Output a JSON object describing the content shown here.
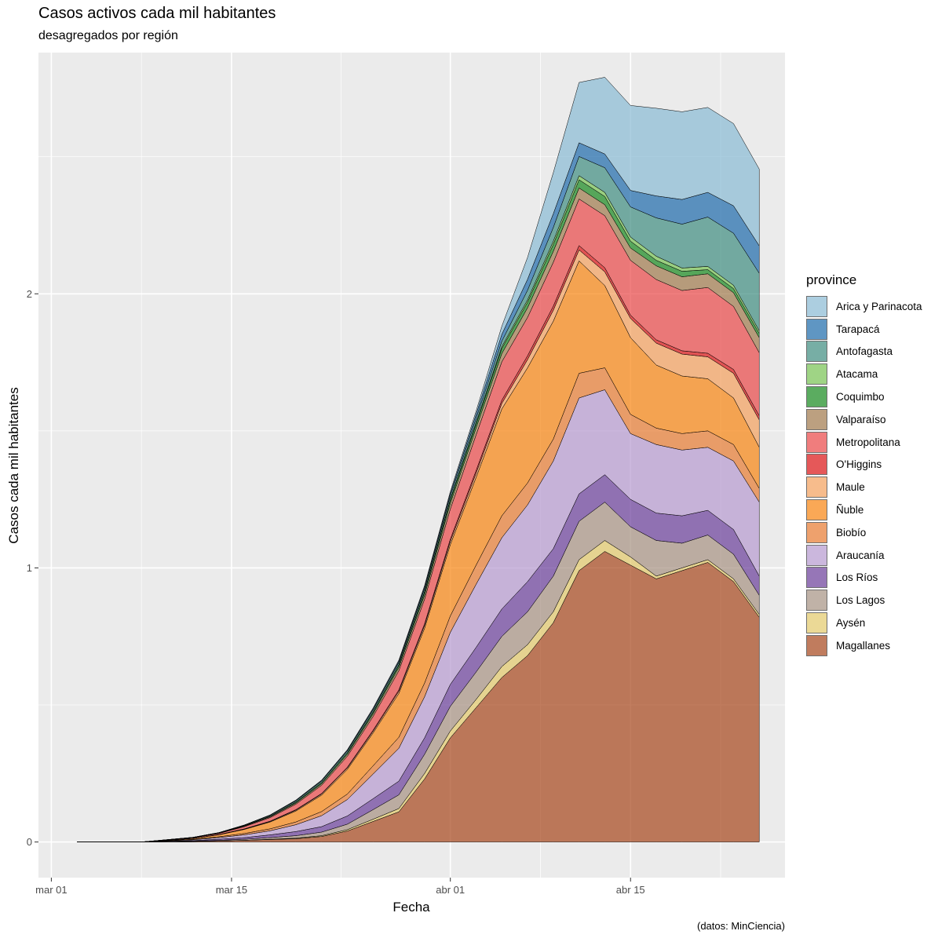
{
  "chart_data": {
    "type": "area",
    "title": "Casos activos cada mil habitantes",
    "subtitle": "desagregados por región",
    "xlabel": "Fecha",
    "ylabel": "Casos cada mil habitantes",
    "caption": "(datos: MinCiencia)",
    "legend_title": "province",
    "legend_position": "right",
    "stacked": true,
    "x_range": [
      "2020-02-29",
      "2020-04-27"
    ],
    "y_range": [
      -0.13,
      2.88
    ],
    "x_ticks": [
      {
        "date": "2020-03-01",
        "label": "mar 01"
      },
      {
        "date": "2020-03-15",
        "label": "mar 15"
      },
      {
        "date": "2020-04-01",
        "label": "abr 01"
      },
      {
        "date": "2020-04-15",
        "label": "abr 15"
      }
    ],
    "y_ticks": [
      0,
      1,
      2
    ],
    "x": [
      "2020-03-03",
      "2020-03-08",
      "2020-03-12",
      "2020-03-14",
      "2020-03-16",
      "2020-03-18",
      "2020-03-20",
      "2020-03-22",
      "2020-03-24",
      "2020-03-26",
      "2020-03-28",
      "2020-03-30",
      "2020-04-01",
      "2020-04-03",
      "2020-04-05",
      "2020-04-07",
      "2020-04-09",
      "2020-04-11",
      "2020-04-13",
      "2020-04-15",
      "2020-04-17",
      "2020-04-19",
      "2020-04-21",
      "2020-04-23",
      "2020-04-25"
    ],
    "series": [
      {
        "name": "Magallanes",
        "color": "#a6461b",
        "values": [
          0.0,
          0.0,
          0.002,
          0.004,
          0.006,
          0.009,
          0.012,
          0.02,
          0.04,
          0.075,
          0.11,
          0.23,
          0.38,
          0.49,
          0.6,
          0.68,
          0.8,
          0.99,
          1.06,
          1.01,
          0.96,
          0.99,
          1.02,
          0.95,
          0.82
        ]
      },
      {
        "name": "Aysén",
        "color": "#e3c96a",
        "values": [
          0.0,
          0.0,
          0.0,
          0.0,
          0.0,
          0.001,
          0.002,
          0.003,
          0.005,
          0.008,
          0.012,
          0.02,
          0.025,
          0.03,
          0.04,
          0.04,
          0.04,
          0.04,
          0.04,
          0.03,
          0.01,
          0.01,
          0.01,
          0.01,
          0.01
        ]
      },
      {
        "name": "Los Lagos",
        "color": "#a69282",
        "values": [
          0.0,
          0.0,
          0.001,
          0.002,
          0.004,
          0.006,
          0.009,
          0.013,
          0.02,
          0.035,
          0.05,
          0.07,
          0.09,
          0.1,
          0.11,
          0.12,
          0.13,
          0.14,
          0.14,
          0.11,
          0.13,
          0.09,
          0.09,
          0.09,
          0.07
        ]
      },
      {
        "name": "Los Ríos",
        "color": "#6a3d9a",
        "values": [
          0.0,
          0.0,
          0.002,
          0.004,
          0.006,
          0.01,
          0.015,
          0.02,
          0.03,
          0.04,
          0.05,
          0.06,
          0.08,
          0.09,
          0.1,
          0.11,
          0.1,
          0.1,
          0.1,
          0.1,
          0.1,
          0.1,
          0.09,
          0.09,
          0.07
        ]
      },
      {
        "name": "Araucanía",
        "color": "#b69ad0",
        "values": [
          0.0,
          0.0,
          0.003,
          0.006,
          0.01,
          0.015,
          0.025,
          0.04,
          0.06,
          0.09,
          0.12,
          0.15,
          0.19,
          0.23,
          0.26,
          0.28,
          0.32,
          0.35,
          0.31,
          0.24,
          0.25,
          0.24,
          0.23,
          0.25,
          0.27
        ]
      },
      {
        "name": "Biobío",
        "color": "#e77a30",
        "values": [
          0.0,
          0.0,
          0.002,
          0.003,
          0.005,
          0.007,
          0.01,
          0.015,
          0.02,
          0.03,
          0.04,
          0.05,
          0.06,
          0.07,
          0.08,
          0.08,
          0.08,
          0.09,
          0.08,
          0.07,
          0.06,
          0.06,
          0.06,
          0.06,
          0.05
        ]
      },
      {
        "name": "Ñuble",
        "color": "#f88410",
        "values": [
          0.0,
          0.0,
          0.003,
          0.007,
          0.015,
          0.025,
          0.04,
          0.06,
          0.09,
          0.12,
          0.16,
          0.2,
          0.26,
          0.32,
          0.39,
          0.42,
          0.43,
          0.41,
          0.3,
          0.28,
          0.23,
          0.21,
          0.19,
          0.17,
          0.15
        ]
      },
      {
        "name": "Maule",
        "color": "#f4a05c",
        "values": [
          0.0,
          0.0,
          0.0,
          0.001,
          0.001,
          0.002,
          0.003,
          0.004,
          0.005,
          0.006,
          0.008,
          0.01,
          0.012,
          0.015,
          0.02,
          0.03,
          0.04,
          0.04,
          0.05,
          0.07,
          0.08,
          0.08,
          0.08,
          0.09,
          0.1
        ]
      },
      {
        "name": "O'Higgins",
        "color": "#db1213",
        "values": [
          0.0,
          0.0,
          0.0,
          0.0,
          0.001,
          0.001,
          0.002,
          0.002,
          0.003,
          0.004,
          0.005,
          0.006,
          0.008,
          0.01,
          0.012,
          0.014,
          0.015,
          0.016,
          0.015,
          0.012,
          0.012,
          0.012,
          0.013,
          0.014,
          0.015
        ]
      },
      {
        "name": "Metropolitana",
        "color": "#ea4747",
        "values": [
          0.0,
          0.0,
          0.002,
          0.004,
          0.008,
          0.013,
          0.02,
          0.03,
          0.04,
          0.05,
          0.07,
          0.09,
          0.11,
          0.13,
          0.14,
          0.14,
          0.16,
          0.17,
          0.19,
          0.2,
          0.22,
          0.22,
          0.24,
          0.23,
          0.23
        ]
      },
      {
        "name": "Valparaíso",
        "color": "#a0794b",
        "values": [
          0.0,
          0.0,
          0.001,
          0.001,
          0.002,
          0.003,
          0.004,
          0.005,
          0.007,
          0.009,
          0.012,
          0.015,
          0.02,
          0.025,
          0.03,
          0.035,
          0.04,
          0.04,
          0.04,
          0.045,
          0.05,
          0.05,
          0.05,
          0.05,
          0.055
        ]
      },
      {
        "name": "Coquimbo",
        "color": "#17891d",
        "values": [
          0.0,
          0.0,
          0.0,
          0.001,
          0.001,
          0.002,
          0.003,
          0.004,
          0.005,
          0.006,
          0.008,
          0.01,
          0.012,
          0.015,
          0.018,
          0.02,
          0.025,
          0.03,
          0.03,
          0.025,
          0.02,
          0.02,
          0.015,
          0.015,
          0.015
        ]
      },
      {
        "name": "Atacama",
        "color": "#77c352",
        "values": [
          0.0,
          0.0,
          0.0,
          0.0,
          0.0,
          0.0,
          0.001,
          0.001,
          0.001,
          0.002,
          0.002,
          0.003,
          0.004,
          0.005,
          0.007,
          0.009,
          0.012,
          0.015,
          0.015,
          0.015,
          0.015,
          0.012,
          0.012,
          0.012,
          0.01
        ]
      },
      {
        "name": "Antofagasta",
        "color": "#3e8d80",
        "values": [
          0.0,
          0.0,
          0.001,
          0.001,
          0.002,
          0.003,
          0.004,
          0.005,
          0.006,
          0.007,
          0.008,
          0.01,
          0.012,
          0.015,
          0.02,
          0.035,
          0.05,
          0.07,
          0.09,
          0.11,
          0.14,
          0.16,
          0.18,
          0.19,
          0.21
        ]
      },
      {
        "name": "Tarapacá",
        "color": "#1c6aab",
        "values": [
          0.0,
          0.0,
          0.0,
          0.0,
          0.001,
          0.001,
          0.002,
          0.002,
          0.003,
          0.004,
          0.005,
          0.007,
          0.009,
          0.015,
          0.025,
          0.04,
          0.05,
          0.05,
          0.05,
          0.06,
          0.08,
          0.09,
          0.09,
          0.1,
          0.1
        ]
      },
      {
        "name": "Arica y Parinacota",
        "color": "#89bad4",
        "values": [
          0.0,
          0.0,
          0.0,
          0.0,
          0.0,
          0.001,
          0.001,
          0.002,
          0.002,
          0.003,
          0.004,
          0.005,
          0.007,
          0.012,
          0.03,
          0.08,
          0.15,
          0.22,
          0.28,
          0.31,
          0.32,
          0.32,
          0.31,
          0.3,
          0.28
        ]
      }
    ]
  }
}
